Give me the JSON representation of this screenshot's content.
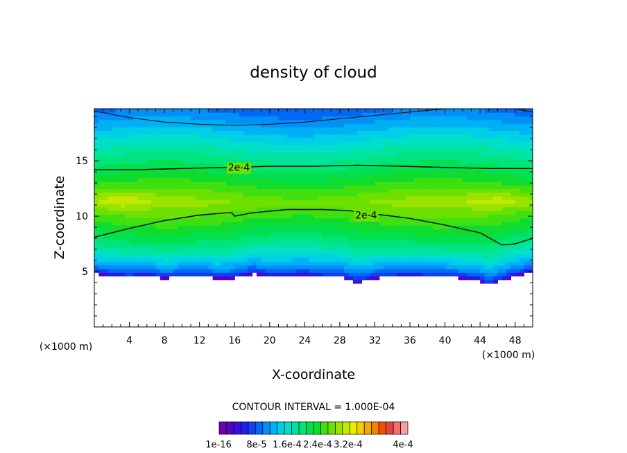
{
  "chart_data": {
    "type": "heatmap",
    "title": "density of cloud",
    "xlabel": "X-coordinate",
    "ylabel": "Z-coordinate",
    "x_unit": "(×1000 m)",
    "y_unit": "(×1000 m)",
    "xlim": [
      0,
      50
    ],
    "ylim": [
      0,
      19.7
    ],
    "x_ticks": [
      4,
      8,
      12,
      16,
      20,
      24,
      28,
      32,
      36,
      40,
      44,
      48
    ],
    "y_ticks": [
      5,
      10,
      15
    ],
    "grid": false,
    "contour_interval_label": "CONTOUR INTERVAL = 1.000E-04",
    "contour_labels": [
      {
        "text": "2e-4",
        "x": 16.5,
        "z": 14.4
      },
      {
        "text": "2e-4",
        "x": 31.0,
        "z": 10.1
      }
    ],
    "contours": [
      {
        "level": "2e-4",
        "points": [
          [
            0,
            14.2
          ],
          [
            5,
            14.2
          ],
          [
            10,
            14.3
          ],
          [
            15,
            14.4
          ],
          [
            20,
            14.5
          ],
          [
            25,
            14.5
          ],
          [
            30,
            14.6
          ],
          [
            35,
            14.5
          ],
          [
            40,
            14.4
          ],
          [
            45,
            14.3
          ],
          [
            50,
            14.3
          ]
        ]
      },
      {
        "level": "2e-4",
        "points": [
          [
            0,
            8.1
          ],
          [
            4,
            8.9
          ],
          [
            8,
            9.6
          ],
          [
            12,
            10.1
          ],
          [
            15,
            10.3
          ],
          [
            15.7,
            10.3
          ],
          [
            16,
            10.0
          ],
          [
            18,
            10.3
          ],
          [
            22,
            10.6
          ],
          [
            26,
            10.6
          ],
          [
            29,
            10.5
          ],
          [
            32,
            10.2
          ],
          [
            36,
            9.8
          ],
          [
            40,
            9.2
          ],
          [
            44,
            8.5
          ],
          [
            46.5,
            7.4
          ],
          [
            48,
            7.5
          ],
          [
            50,
            8.0
          ]
        ]
      },
      {
        "level": "1e-4",
        "points": [
          [
            0,
            19.5
          ],
          [
            4,
            18.9
          ],
          [
            8,
            18.5
          ],
          [
            12,
            18.3
          ],
          [
            16,
            18.2
          ],
          [
            20,
            18.3
          ],
          [
            24,
            18.5
          ],
          [
            28,
            18.8
          ],
          [
            32,
            19.1
          ],
          [
            36,
            19.4
          ],
          [
            40,
            19.7
          ]
        ]
      },
      {
        "level": "1e-4",
        "points": [
          [
            48,
            19.7
          ],
          [
            50,
            19.4
          ]
        ]
      }
    ],
    "cloud_base": {
      "x": [
        0,
        2,
        4,
        6,
        8,
        10,
        12,
        14,
        16,
        18,
        20,
        22,
        24,
        26,
        28,
        30,
        32,
        34,
        36,
        38,
        40,
        42,
        44,
        45,
        46,
        48,
        50
      ],
      "z": [
        4.8,
        4.6,
        4.5,
        4.6,
        4.4,
        4.5,
        4.5,
        4.4,
        4.4,
        4.8,
        4.6,
        4.6,
        4.7,
        4.5,
        4.5,
        4.0,
        4.4,
        4.5,
        4.6,
        4.5,
        4.5,
        4.4,
        4.2,
        3.7,
        4.1,
        4.6,
        5.0
      ]
    },
    "field_maxima": [
      {
        "x": 2.5,
        "z": 11.5
      },
      {
        "x": 46.5,
        "z": 11.5
      }
    ],
    "color_scale": {
      "colors": [
        "#6e00b0",
        "#5a00c8",
        "#3a10d8",
        "#2020e8",
        "#1040f0",
        "#0068f4",
        "#0090f8",
        "#00b0f4",
        "#00cfe8",
        "#00e0c8",
        "#00e4a0",
        "#00e47c",
        "#00e050",
        "#10dc30",
        "#40e010",
        "#6ce000",
        "#98e400",
        "#c4e800",
        "#e8ec00",
        "#f4d000",
        "#f4a800",
        "#f48000",
        "#f05000",
        "#e84040",
        "#f07070",
        "#f8a0a0"
      ],
      "tick_labels": [
        "1e-16",
        "8e-5",
        "1.6e-4",
        "2.4e-4",
        "3.2e-4",
        "4e-4"
      ]
    }
  }
}
